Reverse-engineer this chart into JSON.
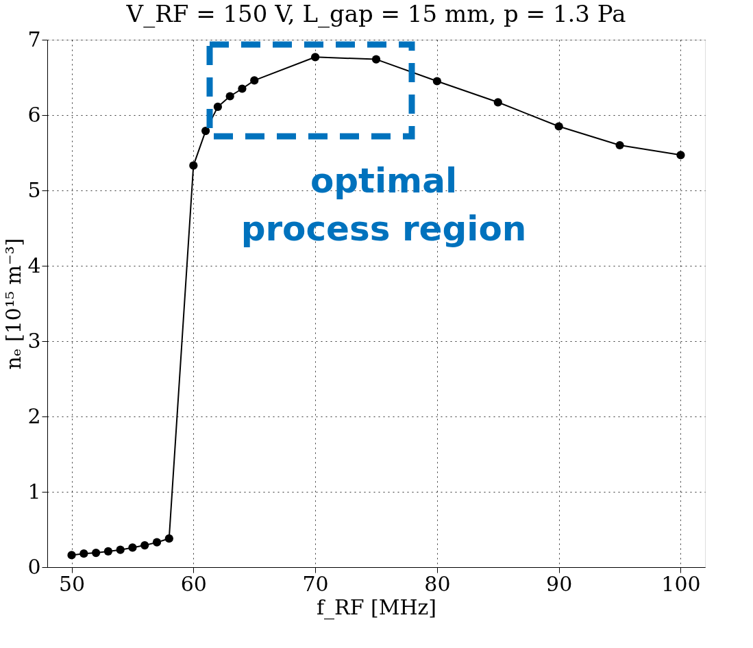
{
  "chart_data": {
    "type": "line",
    "title": "V_RF = 150 V, L_gap = 15 mm, p = 1.3 Pa",
    "xlabel": "f_RF [MHz]",
    "ylabel": "nₑ [10¹⁵ m⁻³]",
    "x": [
      50,
      51,
      52,
      53,
      54,
      55,
      56,
      57,
      58,
      60,
      61,
      62,
      63,
      64,
      65,
      70,
      75,
      80,
      85,
      90,
      95,
      100
    ],
    "series": [
      {
        "color": "#000000",
        "values": [
          0.16,
          0.18,
          0.19,
          0.21,
          0.23,
          0.26,
          0.29,
          0.33,
          0.38,
          5.33,
          5.79,
          6.11,
          6.25,
          6.35,
          6.46,
          6.77,
          6.74,
          6.45,
          6.17,
          5.85,
          5.6,
          5.47
        ]
      }
    ],
    "xlim": [
      48,
      102
    ],
    "xticks": [
      50,
      60,
      70,
      80,
      90,
      100
    ],
    "ylim": [
      0,
      7
    ],
    "yticks": [
      0,
      1,
      2,
      3,
      4,
      5,
      6,
      7
    ],
    "grid": true,
    "marker": "circle",
    "line_style": "solid",
    "annotations": [
      "optimal process region"
    ]
  }
}
